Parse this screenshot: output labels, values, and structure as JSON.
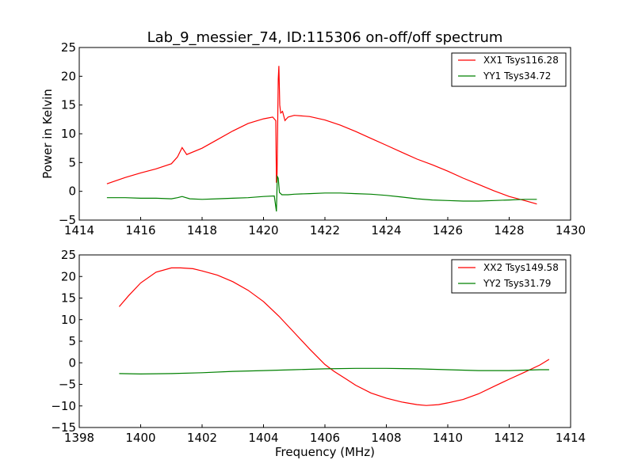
{
  "figure": {
    "title": "Lab_9_messier_74, ID:115306 on-off/off spectrum",
    "xlabel": "Frequency (MHz)",
    "colors": {
      "xx": "#ff0000",
      "yy": "#008000"
    }
  },
  "chart_data": [
    {
      "type": "line",
      "ylabel": "Power in Kelvin",
      "xlim": [
        1414,
        1430
      ],
      "ylim": [
        -5,
        25
      ],
      "xticks": [
        "1414",
        "1416",
        "1418",
        "1420",
        "1422",
        "1424",
        "1426",
        "1428",
        "1430"
      ],
      "yticks": [
        "−5",
        "0",
        "5",
        "10",
        "15",
        "20",
        "25"
      ],
      "legend_position": "top-right",
      "series": [
        {
          "name": "XX1 Tsys116.28",
          "color": "#ff0000",
          "x": [
            1414.9,
            1415.5,
            1416.0,
            1416.5,
            1417.0,
            1417.2,
            1417.35,
            1417.5,
            1418.0,
            1418.5,
            1419.0,
            1419.5,
            1420.0,
            1420.3,
            1420.4,
            1420.42,
            1420.44,
            1420.48,
            1420.5,
            1420.53,
            1420.56,
            1420.62,
            1420.7,
            1420.8,
            1421.0,
            1421.5,
            1422.0,
            1422.5,
            1423.0,
            1423.5,
            1424.0,
            1424.5,
            1425.0,
            1425.5,
            1426.0,
            1426.5,
            1427.0,
            1427.5,
            1428.0,
            1428.5,
            1428.9
          ],
          "y": [
            1.3,
            2.4,
            3.2,
            3.9,
            4.8,
            6.0,
            7.6,
            6.4,
            7.5,
            9.0,
            10.5,
            11.8,
            12.6,
            12.9,
            12.3,
            1.5,
            3.0,
            19.5,
            21.8,
            15.0,
            13.6,
            13.9,
            12.3,
            12.9,
            13.2,
            13.0,
            12.4,
            11.5,
            10.4,
            9.2,
            8.0,
            6.8,
            5.6,
            4.6,
            3.5,
            2.3,
            1.2,
            0.1,
            -0.9,
            -1.6,
            -2.2
          ]
        },
        {
          "name": "YY1 Tsys34.72",
          "color": "#008000",
          "x": [
            1414.9,
            1415.5,
            1416.0,
            1416.5,
            1417.0,
            1417.2,
            1417.35,
            1417.6,
            1418.0,
            1418.5,
            1419.0,
            1419.5,
            1420.0,
            1420.35,
            1420.42,
            1420.45,
            1420.48,
            1420.52,
            1420.6,
            1420.8,
            1421.0,
            1421.5,
            1422.0,
            1422.5,
            1423.0,
            1423.5,
            1424.0,
            1424.5,
            1425.0,
            1425.5,
            1426.0,
            1426.5,
            1427.0,
            1427.5,
            1428.0,
            1428.5,
            1428.9
          ],
          "y": [
            -1.1,
            -1.1,
            -1.2,
            -1.2,
            -1.3,
            -1.1,
            -0.9,
            -1.3,
            -1.4,
            -1.3,
            -1.2,
            -1.1,
            -0.9,
            -0.8,
            -3.5,
            2.6,
            2.3,
            -0.2,
            -0.6,
            -0.6,
            -0.5,
            -0.4,
            -0.3,
            -0.3,
            -0.4,
            -0.5,
            -0.7,
            -1.0,
            -1.3,
            -1.5,
            -1.6,
            -1.7,
            -1.7,
            -1.6,
            -1.5,
            -1.4,
            -1.4
          ]
        }
      ]
    },
    {
      "type": "line",
      "ylabel": "",
      "xlim": [
        1398,
        1414
      ],
      "ylim": [
        -15,
        25
      ],
      "xticks": [
        "1398",
        "1400",
        "1402",
        "1404",
        "1406",
        "1408",
        "1410",
        "1412",
        "1414"
      ],
      "yticks": [
        "−15",
        "−10",
        "−5",
        "0",
        "5",
        "10",
        "15",
        "20",
        "25"
      ],
      "legend_position": "top-right",
      "series": [
        {
          "name": "XX2 Tsys149.58",
          "color": "#ff0000",
          "x": [
            1399.3,
            1399.6,
            1400.0,
            1400.5,
            1401.0,
            1401.3,
            1401.7,
            1402.0,
            1402.5,
            1403.0,
            1403.5,
            1404.0,
            1404.5,
            1405.0,
            1405.5,
            1406.0,
            1406.3,
            1406.7,
            1407.0,
            1407.5,
            1408.0,
            1408.5,
            1409.0,
            1409.3,
            1409.7,
            1410.0,
            1410.5,
            1411.0,
            1411.5,
            1412.0,
            1412.5,
            1413.0,
            1413.3
          ],
          "y": [
            13.0,
            15.5,
            18.5,
            21.0,
            22.0,
            22.0,
            21.8,
            21.3,
            20.3,
            18.8,
            16.8,
            14.2,
            10.8,
            7.0,
            3.2,
            -0.4,
            -2.0,
            -3.8,
            -5.2,
            -7.0,
            -8.2,
            -9.1,
            -9.7,
            -9.9,
            -9.7,
            -9.3,
            -8.5,
            -7.2,
            -5.5,
            -3.8,
            -2.2,
            -0.5,
            0.8
          ]
        },
        {
          "name": "YY2 Tsys31.79",
          "color": "#008000",
          "x": [
            1399.3,
            1400.0,
            1401.0,
            1402.0,
            1403.0,
            1404.0,
            1405.0,
            1406.0,
            1407.0,
            1408.0,
            1409.0,
            1410.0,
            1411.0,
            1412.0,
            1413.0,
            1413.3
          ],
          "y": [
            -2.5,
            -2.6,
            -2.5,
            -2.3,
            -2.0,
            -1.8,
            -1.6,
            -1.4,
            -1.3,
            -1.3,
            -1.4,
            -1.6,
            -1.8,
            -1.8,
            -1.6,
            -1.6
          ]
        }
      ]
    }
  ]
}
